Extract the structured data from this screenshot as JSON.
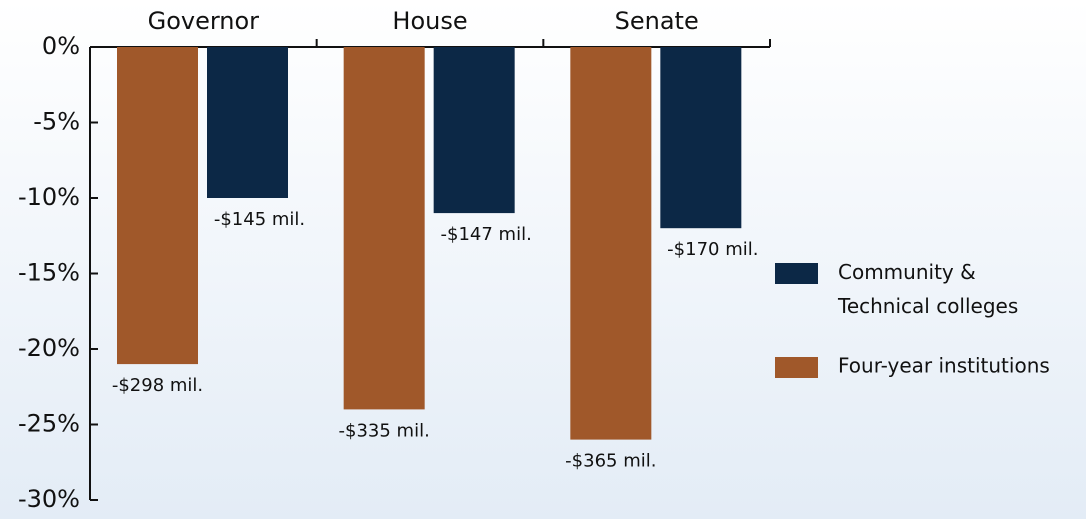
{
  "chart_data": {
    "type": "bar",
    "categories": [
      "Governor",
      "House",
      "Senate"
    ],
    "series": [
      {
        "name": "Four-year institutions",
        "color": "#a0582a",
        "values": [
          -21,
          -24,
          -26
        ],
        "labels": [
          "-$298 mil.",
          "-$335 mil.",
          "-$365 mil."
        ]
      },
      {
        "name": "Community & Technical colleges",
        "color": "#0c2846",
        "values": [
          -10,
          -11,
          -12
        ],
        "labels": [
          "-$145 mil.",
          "-$147 mil.",
          "-$170 mil."
        ]
      }
    ],
    "ylim": [
      -30,
      0
    ],
    "yticks": [
      {
        "value": 0,
        "label": "0%"
      },
      {
        "value": -5,
        "label": "-5%"
      },
      {
        "value": -10,
        "label": "-10%"
      },
      {
        "value": -15,
        "label": "-15%"
      },
      {
        "value": -20,
        "label": "-20%"
      },
      {
        "value": -25,
        "label": "-25%"
      },
      {
        "value": -30,
        "label": "-30%"
      }
    ],
    "legend": "right"
  }
}
